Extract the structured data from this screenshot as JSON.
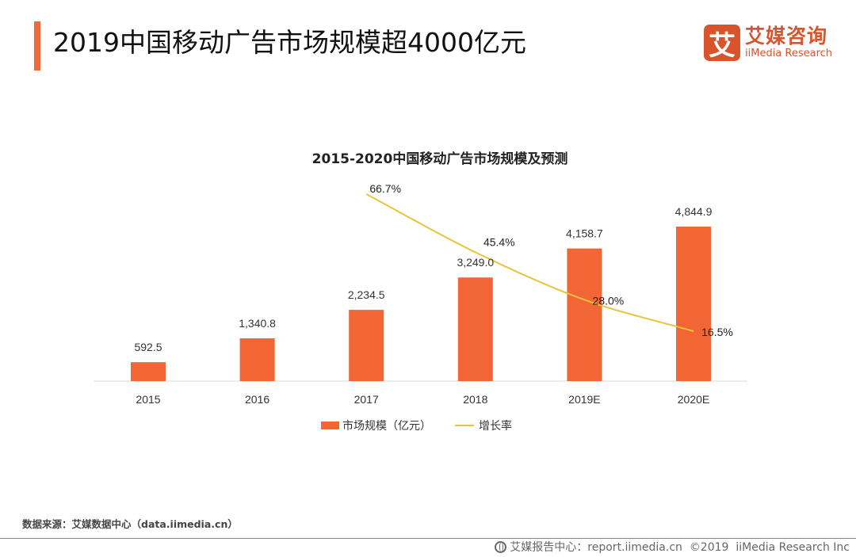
{
  "header": {
    "title": "2019中国移动广告市场规模超4000亿元",
    "accent_color": "#ee6a3c"
  },
  "logo": {
    "mark": "艾",
    "name_cn": "艾媒咨询",
    "name_en": "iiMedia Research",
    "color": "#d9542d"
  },
  "chart_data": {
    "type": "bar",
    "title": "2015-2020中国移动广告市场规模及预测",
    "categories": [
      "2015",
      "2016",
      "2017",
      "2018",
      "2019E",
      "2020E"
    ],
    "series": [
      {
        "name": "市场规模（亿元）",
        "type": "bar",
        "color": "#f26636",
        "values": [
          592.5,
          1340.8,
          2234.5,
          3249.0,
          4158.7,
          4844.9
        ],
        "labels": [
          "592.5",
          "1,340.8",
          "2,234.5",
          "3,249.0",
          "4,158.7",
          "4,844.9"
        ]
      },
      {
        "name": "增长率",
        "type": "line",
        "color": "#e8c43a",
        "values": [
          null,
          null,
          66.7,
          45.4,
          28.0,
          16.5
        ],
        "labels": [
          "",
          "",
          "66.7%",
          "45.4%",
          "28.0%",
          "16.5%"
        ]
      }
    ],
    "xlabel": "",
    "ylabel": "",
    "ylim": [
      0,
      5000
    ],
    "grid": false,
    "legend": "bottom-center"
  },
  "legend": {
    "bar_label": "市场规模（亿元）",
    "line_label": "增长率"
  },
  "source": "数据来源：艾媒数据中心（data.iimedia.cn）",
  "footer": {
    "text": "艾媒报告中心：report.iimedia.cn  ©2019  iiMedia Research Inc"
  }
}
